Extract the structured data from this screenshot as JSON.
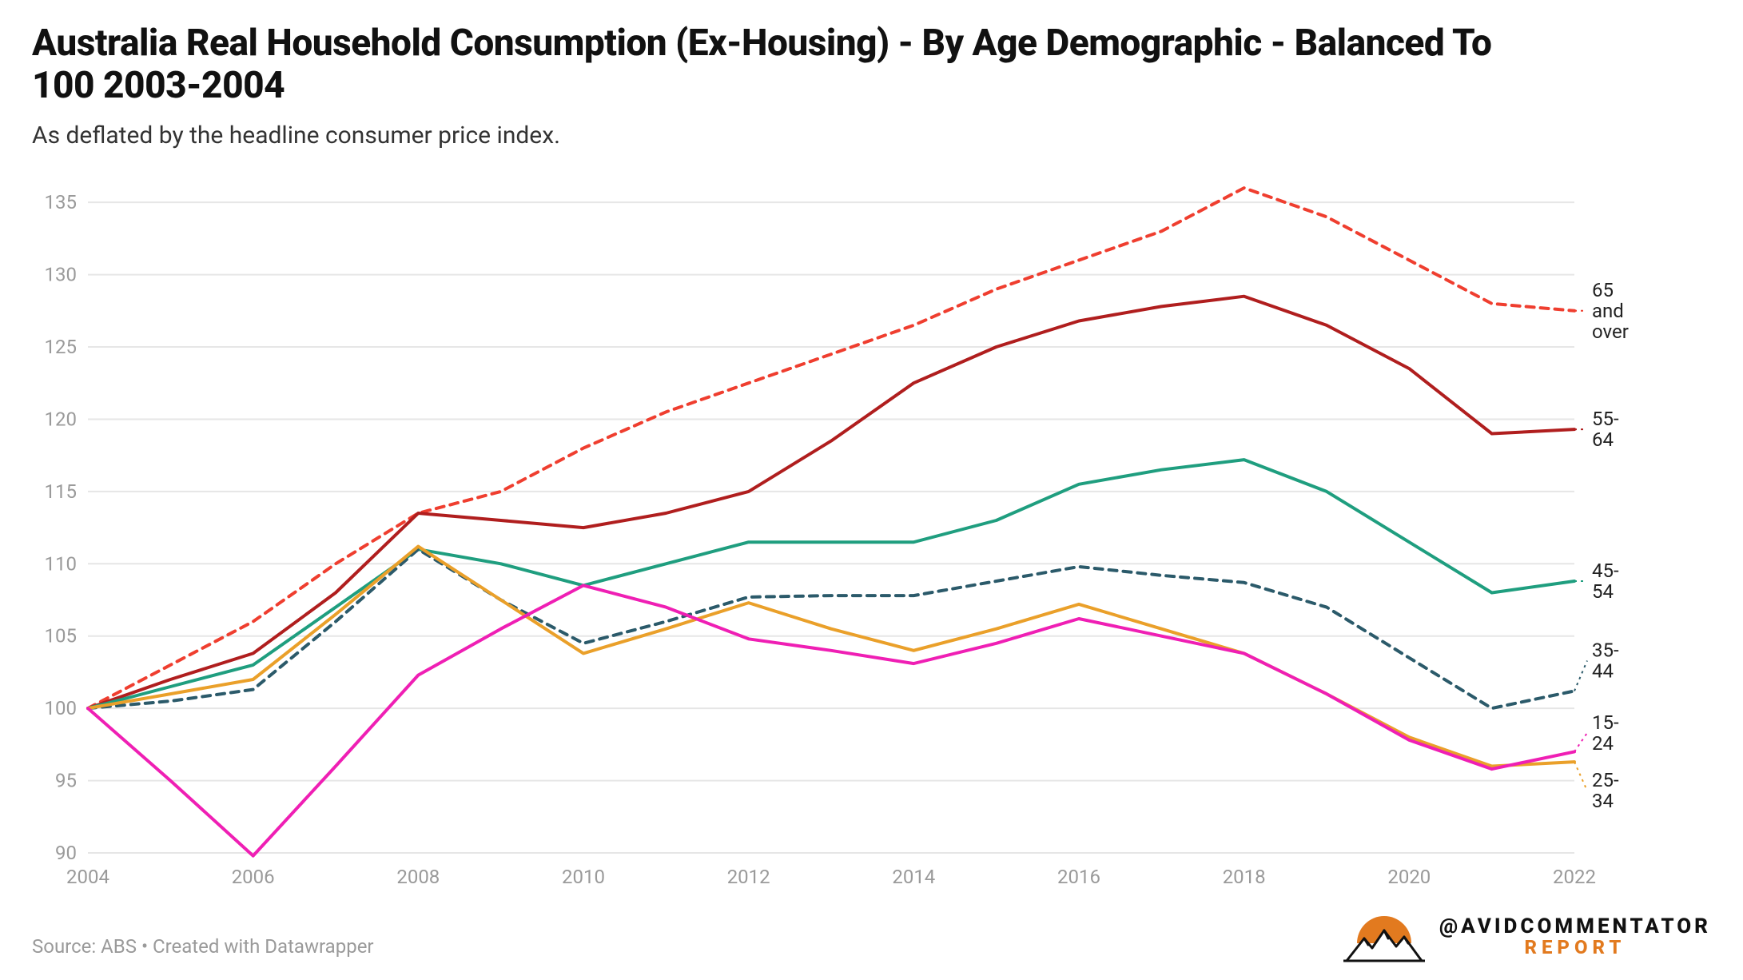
{
  "title": "Australia Real Household Consumption (Ex-Housing) - By Age Demographic - Balanced To 100 2003-2004",
  "subtitle": "As deflated by the headline consumer price index.",
  "source_line": "Source: ABS • Created with Datawrapper",
  "logo": {
    "handle": "@AVIDCOMMENTATOR",
    "sub": "REPORT",
    "accent": "#e27a1f",
    "text_color": "#111111"
  },
  "chart": {
    "type": "line",
    "background_color": "#ffffff",
    "grid_color": "#e6e6e6",
    "axis_label_color": "#9a9a9a",
    "axis_fontsize": 24,
    "label_fontsize": 24,
    "x": {
      "years": [
        2004,
        2005,
        2006,
        2007,
        2008,
        2009,
        2010,
        2011,
        2012,
        2013,
        2014,
        2015,
        2016,
        2017,
        2018,
        2019,
        2020,
        2021,
        2022
      ],
      "ticks": [
        2004,
        2006,
        2008,
        2010,
        2012,
        2014,
        2016,
        2018,
        2020,
        2022
      ]
    },
    "y": {
      "min": 90,
      "max": 137,
      "ticks": [
        90,
        95,
        100,
        105,
        110,
        115,
        120,
        125,
        130,
        135
      ]
    },
    "line_width": 4,
    "dash_pattern": "10,8",
    "series": [
      {
        "name": "65 and over",
        "label_lines": [
          "65",
          "and",
          "over"
        ],
        "color": "#ef3e2f",
        "style": "dashed",
        "values": [
          100,
          103,
          106,
          110,
          113.5,
          115,
          118,
          120.5,
          122.5,
          124.5,
          126.5,
          129,
          131,
          133,
          136,
          134,
          131,
          128,
          127.5
        ]
      },
      {
        "name": "55-64",
        "label_lines": [
          "55-",
          "64"
        ],
        "color": "#b01e1e",
        "style": "solid",
        "values": [
          100,
          102,
          103.8,
          108,
          113.5,
          113,
          112.5,
          113.5,
          115,
          118.5,
          122.5,
          125,
          126.8,
          127.8,
          128.5,
          126.5,
          123.5,
          119,
          119.3
        ]
      },
      {
        "name": "45-54",
        "label_lines": [
          "45-",
          "54"
        ],
        "color": "#1f9e7f",
        "style": "solid",
        "values": [
          100,
          101.5,
          103,
          107,
          111,
          110,
          108.5,
          110,
          111.5,
          111.5,
          111.5,
          113,
          115.5,
          116.5,
          117.2,
          115,
          111.5,
          108,
          108.8
        ]
      },
      {
        "name": "35-44",
        "label_lines": [
          "35-",
          "44"
        ],
        "color": "#2b5a6a",
        "style": "dashed",
        "values": [
          100,
          100.5,
          101.3,
          106,
          111,
          107.5,
          104.5,
          106,
          107.7,
          107.8,
          107.8,
          108.8,
          109.8,
          109.2,
          108.7,
          107,
          103.5,
          100,
          101.2
        ]
      },
      {
        "name": "25-34",
        "label_lines": [
          "25-",
          "34"
        ],
        "color": "#eaa02a",
        "style": "solid",
        "values": [
          100,
          101,
          102,
          106.5,
          111.2,
          107.5,
          103.8,
          105.5,
          107.3,
          105.5,
          104,
          105.5,
          107.2,
          105.5,
          103.8,
          101,
          98,
          96,
          96.3
        ]
      },
      {
        "name": "15-24",
        "label_lines": [
          "15-",
          "24"
        ],
        "color": "#ef1fb4",
        "style": "solid",
        "values": [
          100,
          95,
          89.8,
          96,
          102.3,
          105.5,
          108.5,
          107,
          104.8,
          104,
          103.1,
          104.5,
          106.2,
          105,
          103.8,
          101,
          97.8,
          95.8,
          97
        ]
      }
    ],
    "label_order_right": [
      "65 and over",
      "55-64",
      "45-54",
      "35-44",
      "15-24",
      "25-34"
    ],
    "label_y_positions": {
      "65 and over": 127.5,
      "55-64": 119.3,
      "45-54": 108.8,
      "35-44": 103.3,
      "15-24": 98.3,
      "25-34": 94.3
    }
  }
}
